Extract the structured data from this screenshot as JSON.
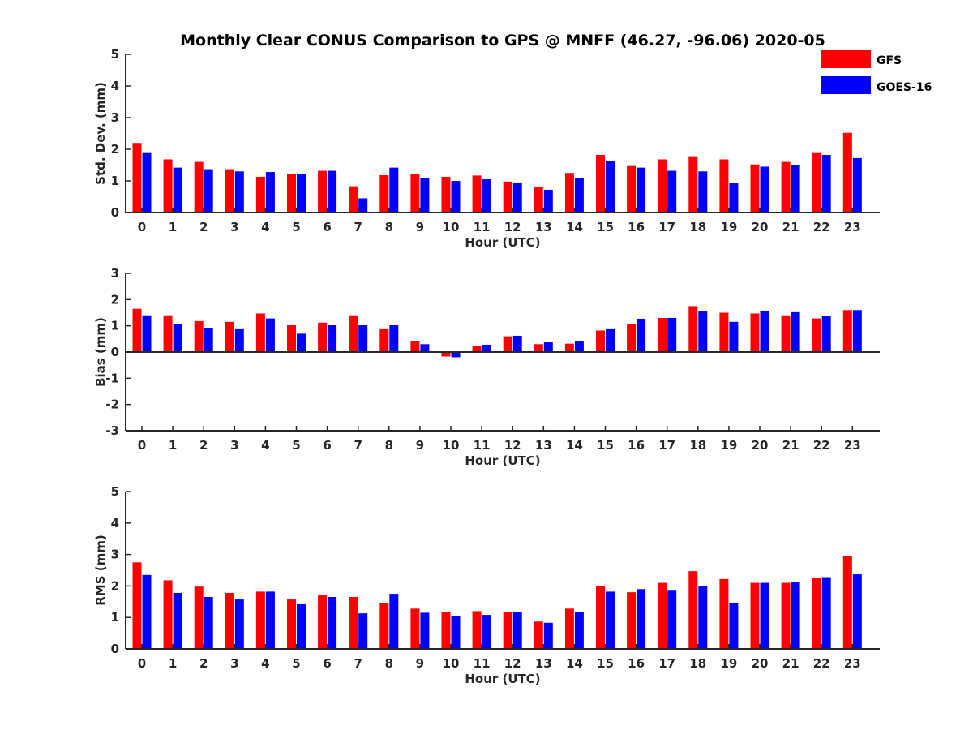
{
  "figure": {
    "title": "Monthly Clear CONUS Comparison to GPS @ MNFF (46.27, -96.06) 2020-05"
  },
  "legend": {
    "position": "top-right",
    "items": [
      {
        "name": "GFS",
        "color": "#ff0000"
      },
      {
        "name": "GOES-16",
        "color": "#0000ff"
      }
    ]
  },
  "chart_data": [
    {
      "type": "bar",
      "xlabel": "Hour (UTC)",
      "ylabel": "Std. Dev. (mm)",
      "ylim": [
        0,
        5
      ],
      "yticks": [
        0,
        1,
        2,
        3,
        4,
        5
      ],
      "categories": [
        "0",
        "1",
        "2",
        "3",
        "4",
        "5",
        "6",
        "7",
        "8",
        "9",
        "10",
        "11",
        "12",
        "13",
        "14",
        "15",
        "16",
        "17",
        "18",
        "19",
        "20",
        "21",
        "22",
        "23"
      ],
      "series": [
        {
          "name": "GFS",
          "color": "#ff0000",
          "values": [
            2.2,
            1.68,
            1.6,
            1.37,
            1.13,
            1.22,
            1.32,
            0.83,
            1.18,
            1.22,
            1.13,
            1.17,
            0.98,
            0.8,
            1.25,
            1.82,
            1.47,
            1.68,
            1.78,
            1.68,
            1.52,
            1.6,
            1.88,
            2.52
          ]
        },
        {
          "name": "GOES-16",
          "color": "#0000ff",
          "values": [
            1.88,
            1.42,
            1.37,
            1.3,
            1.28,
            1.22,
            1.32,
            0.45,
            1.42,
            1.1,
            1.0,
            1.05,
            0.95,
            0.72,
            1.08,
            1.62,
            1.42,
            1.32,
            1.3,
            0.93,
            1.45,
            1.5,
            1.82,
            1.72
          ]
        }
      ]
    },
    {
      "type": "bar",
      "xlabel": "Hour (UTC)",
      "ylabel": "Bias (mm)",
      "ylim": [
        -3,
        3
      ],
      "yticks": [
        -3,
        -2,
        -1,
        0,
        1,
        2,
        3
      ],
      "categories": [
        "0",
        "1",
        "2",
        "3",
        "4",
        "5",
        "6",
        "7",
        "8",
        "9",
        "10",
        "11",
        "12",
        "13",
        "14",
        "15",
        "16",
        "17",
        "18",
        "19",
        "20",
        "21",
        "22",
        "23"
      ],
      "series": [
        {
          "name": "GFS",
          "color": "#ff0000",
          "values": [
            1.65,
            1.4,
            1.18,
            1.15,
            1.47,
            1.02,
            1.12,
            1.4,
            0.87,
            0.42,
            -0.17,
            0.22,
            0.6,
            0.3,
            0.32,
            0.82,
            1.05,
            1.3,
            1.75,
            1.5,
            1.47,
            1.4,
            1.28,
            1.6
          ]
        },
        {
          "name": "GOES-16",
          "color": "#0000ff",
          "values": [
            1.4,
            1.08,
            0.9,
            0.87,
            1.28,
            0.7,
            1.02,
            1.02,
            1.02,
            0.3,
            -0.2,
            0.28,
            0.62,
            0.37,
            0.4,
            0.87,
            1.27,
            1.3,
            1.55,
            1.15,
            1.55,
            1.52,
            1.37,
            1.6
          ]
        }
      ]
    },
    {
      "type": "bar",
      "xlabel": "Hour (UTC)",
      "ylabel": "RMS (mm)",
      "ylim": [
        0,
        5
      ],
      "yticks": [
        0,
        1,
        2,
        3,
        4,
        5
      ],
      "categories": [
        "0",
        "1",
        "2",
        "3",
        "4",
        "5",
        "6",
        "7",
        "8",
        "9",
        "10",
        "11",
        "12",
        "13",
        "14",
        "15",
        "16",
        "17",
        "18",
        "19",
        "20",
        "21",
        "22",
        "23"
      ],
      "series": [
        {
          "name": "GFS",
          "color": "#ff0000",
          "values": [
            2.75,
            2.18,
            1.98,
            1.78,
            1.82,
            1.57,
            1.72,
            1.65,
            1.47,
            1.28,
            1.17,
            1.2,
            1.17,
            0.87,
            1.28,
            2.0,
            1.8,
            2.1,
            2.47,
            2.22,
            2.1,
            2.1,
            2.25,
            2.95
          ]
        },
        {
          "name": "GOES-16",
          "color": "#0000ff",
          "values": [
            2.35,
            1.78,
            1.65,
            1.57,
            1.82,
            1.42,
            1.65,
            1.13,
            1.75,
            1.15,
            1.03,
            1.08,
            1.17,
            0.83,
            1.17,
            1.82,
            1.9,
            1.85,
            2.0,
            1.47,
            2.1,
            2.13,
            2.28,
            2.37
          ]
        }
      ]
    }
  ]
}
